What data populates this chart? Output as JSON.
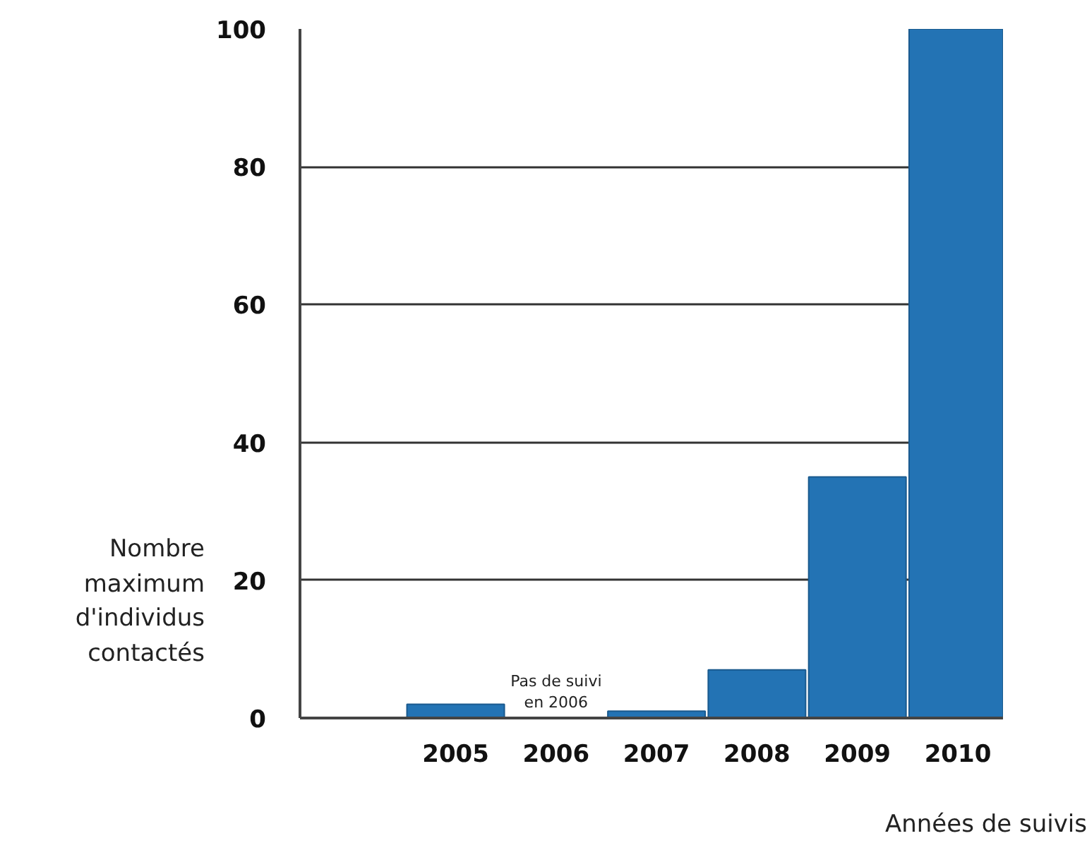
{
  "chart_data": {
    "type": "bar",
    "categories": [
      null,
      "2005",
      "2006",
      "2007",
      "2008",
      "2009",
      "2010"
    ],
    "values": [
      null,
      2,
      null,
      1,
      7,
      35,
      100
    ],
    "color": "#2373b4",
    "ylim": [
      0,
      100
    ],
    "yticks": [
      0,
      20,
      40,
      60,
      80,
      100
    ],
    "grid": "y",
    "xlabel": "Années de suivis",
    "ylabel": "Nombre maximum d'individus contactés",
    "annotations": [
      "Pas de suivi en 2006"
    ]
  }
}
